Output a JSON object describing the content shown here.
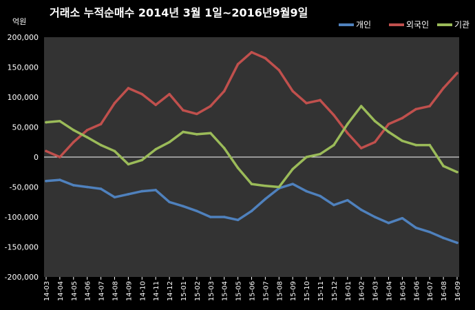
{
  "chart_data": {
    "type": "line",
    "title": "거래소  누적순매수 2014년 3월 1일~2016년9월9일",
    "unit_label": "억원",
    "ylim": [
      -200000,
      200000
    ],
    "yticks": [
      "200,000",
      "150,000",
      "100,000",
      "50,000",
      "0",
      "-50,000",
      "-100,000",
      "-150,000",
      "-200,000"
    ],
    "ytick_values": [
      200000,
      150000,
      100000,
      50000,
      0,
      -50000,
      -100000,
      -150000,
      -200000
    ],
    "categories": [
      "14-03",
      "14-04",
      "14-05",
      "14-06",
      "14-07",
      "14-08",
      "14-09",
      "14-10",
      "14-11",
      "14-12",
      "15-01",
      "15-02",
      "15-03",
      "15-04",
      "15-05",
      "15-06",
      "15-07",
      "15-08",
      "15-09",
      "15-10",
      "15-11",
      "15-12",
      "16-01",
      "16-02",
      "16-03",
      "16-04",
      "16-05",
      "16-06",
      "16-07",
      "16-08",
      "16-09"
    ],
    "grid": false,
    "legend_position": "top-right",
    "background": "#000000",
    "plot_background": "#333333",
    "series": [
      {
        "name": "개인",
        "color": "#4f81bd",
        "values": [
          -40000,
          -38000,
          -47000,
          -50000,
          -53000,
          -67000,
          -62000,
          -57000,
          -55000,
          -75000,
          -82000,
          -90000,
          -100000,
          -100000,
          -105000,
          -90000,
          -70000,
          -52000,
          -45000,
          -57000,
          -65000,
          -80000,
          -72000,
          -88000,
          -100000,
          -110000,
          -102000,
          -118000,
          -125000,
          -135000,
          -143000
        ]
      },
      {
        "name": "외국인",
        "color": "#c0504d",
        "values": [
          10000,
          0,
          25000,
          45000,
          55000,
          90000,
          115000,
          105000,
          87000,
          105000,
          78000,
          72000,
          85000,
          110000,
          155000,
          175000,
          165000,
          145000,
          110000,
          90000,
          95000,
          70000,
          40000,
          15000,
          25000,
          55000,
          65000,
          80000,
          85000,
          115000,
          140000
        ]
      },
      {
        "name": "기관",
        "color": "#9bbb59",
        "values": [
          58000,
          60000,
          45000,
          33000,
          20000,
          10000,
          -12000,
          -5000,
          13000,
          25000,
          42000,
          38000,
          40000,
          15000,
          -18000,
          -45000,
          -48000,
          -50000,
          -20000,
          0,
          5000,
          20000,
          55000,
          85000,
          60000,
          42000,
          27000,
          20000,
          20000,
          -15000,
          -25000
        ]
      }
    ]
  }
}
